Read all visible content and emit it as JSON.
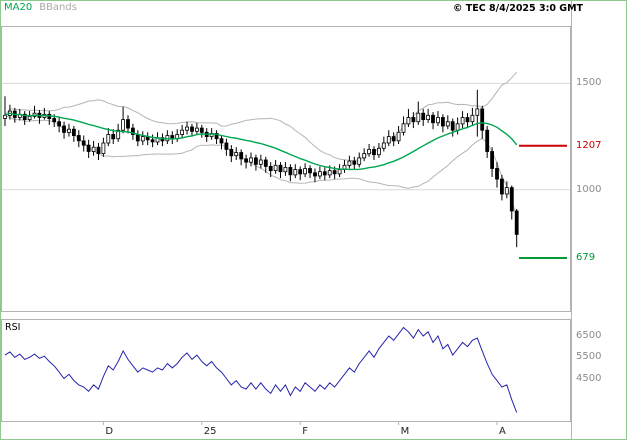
{
  "header": {
    "ma20_label": "MA20",
    "bbands_label": "BBands",
    "copyright": "© TEC 8/4/2025 3:0 GMT"
  },
  "colors": {
    "ma20": "#00a651",
    "bbands": "#b5b5b5",
    "grid": "#d9d9d9",
    "panel_border": "#b3b3b3",
    "frame": "#8fc98f",
    "candle": "#000000",
    "rsi_line": "#2424aa",
    "level_up": "#cc0000",
    "level_down": "#009933",
    "axis_text": "#8c8c8c",
    "month_text": "#222222"
  },
  "chart_data": {
    "type": "candlestick",
    "title": "",
    "price_panel": {
      "ylim": [
        430,
        1770
      ],
      "gridlines": [
        1500,
        1000
      ],
      "axis_labels": [
        "1500",
        "1000"
      ],
      "levels": [
        {
          "value": 1207,
          "label": "1207",
          "color_key": "level_up"
        },
        {
          "value": 679,
          "label": "679",
          "color_key": "level_down"
        }
      ],
      "overlays": [
        "MA20",
        "BBands(20,2)"
      ]
    },
    "ohlc": [
      [
        1335,
        1440,
        1300,
        1350
      ],
      [
        1350,
        1400,
        1330,
        1370
      ],
      [
        1370,
        1385,
        1315,
        1340
      ],
      [
        1340,
        1380,
        1325,
        1355
      ],
      [
        1355,
        1370,
        1305,
        1330
      ],
      [
        1330,
        1370,
        1320,
        1345
      ],
      [
        1345,
        1395,
        1335,
        1360
      ],
      [
        1360,
        1375,
        1310,
        1340
      ],
      [
        1340,
        1385,
        1330,
        1355
      ],
      [
        1355,
        1370,
        1305,
        1335
      ],
      [
        1335,
        1355,
        1295,
        1320
      ],
      [
        1320,
        1340,
        1270,
        1300
      ],
      [
        1300,
        1320,
        1240,
        1270
      ],
      [
        1270,
        1310,
        1250,
        1285
      ],
      [
        1285,
        1300,
        1225,
        1255
      ],
      [
        1255,
        1280,
        1200,
        1230
      ],
      [
        1230,
        1255,
        1180,
        1210
      ],
      [
        1210,
        1235,
        1150,
        1180
      ],
      [
        1180,
        1230,
        1160,
        1200
      ],
      [
        1200,
        1220,
        1140,
        1170
      ],
      [
        1170,
        1245,
        1155,
        1220
      ],
      [
        1220,
        1290,
        1205,
        1260
      ],
      [
        1260,
        1285,
        1215,
        1240
      ],
      [
        1240,
        1310,
        1225,
        1280
      ],
      [
        1280,
        1390,
        1265,
        1330
      ],
      [
        1330,
        1350,
        1265,
        1290
      ],
      [
        1290,
        1310,
        1235,
        1260
      ],
      [
        1260,
        1280,
        1205,
        1230
      ],
      [
        1230,
        1275,
        1210,
        1250
      ],
      [
        1250,
        1270,
        1210,
        1235
      ],
      [
        1235,
        1260,
        1200,
        1225
      ],
      [
        1225,
        1270,
        1210,
        1245
      ],
      [
        1245,
        1265,
        1205,
        1230
      ],
      [
        1230,
        1280,
        1215,
        1255
      ],
      [
        1255,
        1275,
        1215,
        1240
      ],
      [
        1240,
        1285,
        1225,
        1260
      ],
      [
        1260,
        1305,
        1245,
        1280
      ],
      [
        1280,
        1320,
        1260,
        1295
      ],
      [
        1295,
        1310,
        1250,
        1275
      ],
      [
        1275,
        1315,
        1260,
        1290
      ],
      [
        1290,
        1305,
        1245,
        1270
      ],
      [
        1270,
        1290,
        1225,
        1250
      ],
      [
        1250,
        1290,
        1235,
        1265
      ],
      [
        1265,
        1280,
        1215,
        1240
      ],
      [
        1240,
        1255,
        1190,
        1220
      ],
      [
        1220,
        1240,
        1160,
        1190
      ],
      [
        1190,
        1210,
        1130,
        1160
      ],
      [
        1160,
        1200,
        1140,
        1175
      ],
      [
        1175,
        1190,
        1115,
        1145
      ],
      [
        1145,
        1165,
        1100,
        1130
      ],
      [
        1130,
        1175,
        1110,
        1150
      ],
      [
        1150,
        1165,
        1090,
        1120
      ],
      [
        1120,
        1165,
        1100,
        1140
      ],
      [
        1140,
        1155,
        1080,
        1110
      ],
      [
        1110,
        1130,
        1060,
        1090
      ],
      [
        1090,
        1140,
        1075,
        1115
      ],
      [
        1115,
        1130,
        1055,
        1085
      ],
      [
        1085,
        1130,
        1065,
        1105
      ],
      [
        1105,
        1120,
        1040,
        1070
      ],
      [
        1070,
        1120,
        1055,
        1095
      ],
      [
        1095,
        1110,
        1045,
        1075
      ],
      [
        1075,
        1125,
        1060,
        1100
      ],
      [
        1100,
        1115,
        1055,
        1080
      ],
      [
        1080,
        1100,
        1035,
        1065
      ],
      [
        1065,
        1110,
        1050,
        1085
      ],
      [
        1085,
        1105,
        1045,
        1070
      ],
      [
        1070,
        1115,
        1055,
        1090
      ],
      [
        1090,
        1110,
        1050,
        1075
      ],
      [
        1075,
        1120,
        1060,
        1095
      ],
      [
        1095,
        1140,
        1080,
        1115
      ],
      [
        1115,
        1160,
        1100,
        1135
      ],
      [
        1135,
        1155,
        1095,
        1120
      ],
      [
        1120,
        1175,
        1105,
        1150
      ],
      [
        1150,
        1195,
        1135,
        1170
      ],
      [
        1170,
        1215,
        1155,
        1190
      ],
      [
        1190,
        1205,
        1140,
        1165
      ],
      [
        1165,
        1220,
        1150,
        1195
      ],
      [
        1195,
        1250,
        1180,
        1220
      ],
      [
        1220,
        1280,
        1205,
        1250
      ],
      [
        1250,
        1270,
        1205,
        1230
      ],
      [
        1230,
        1300,
        1215,
        1270
      ],
      [
        1270,
        1345,
        1255,
        1310
      ],
      [
        1310,
        1380,
        1295,
        1340
      ],
      [
        1340,
        1365,
        1290,
        1320
      ],
      [
        1320,
        1415,
        1305,
        1360
      ],
      [
        1360,
        1380,
        1300,
        1330
      ],
      [
        1330,
        1380,
        1315,
        1350
      ],
      [
        1350,
        1365,
        1285,
        1315
      ],
      [
        1315,
        1370,
        1300,
        1340
      ],
      [
        1340,
        1355,
        1270,
        1300
      ],
      [
        1300,
        1350,
        1285,
        1320
      ],
      [
        1320,
        1335,
        1250,
        1280
      ],
      [
        1280,
        1340,
        1260,
        1310
      ],
      [
        1310,
        1370,
        1290,
        1340
      ],
      [
        1340,
        1360,
        1290,
        1320
      ],
      [
        1320,
        1385,
        1305,
        1350
      ],
      [
        1350,
        1470,
        1250,
        1380
      ],
      [
        1380,
        1395,
        1240,
        1280
      ],
      [
        1280,
        1300,
        1150,
        1180
      ],
      [
        1180,
        1200,
        1060,
        1100
      ],
      [
        1100,
        1130,
        1010,
        1050
      ],
      [
        1050,
        1070,
        950,
        980
      ],
      [
        980,
        1040,
        960,
        1010
      ],
      [
        1010,
        1020,
        860,
        900
      ],
      [
        900,
        910,
        730,
        790
      ]
    ],
    "rsi_panel": {
      "label": "RSI",
      "ylim": [
        2500,
        7300
      ],
      "axis_labels": [
        6500,
        5500,
        4500
      ],
      "values": [
        5600,
        5750,
        5500,
        5650,
        5400,
        5500,
        5650,
        5450,
        5550,
        5300,
        5100,
        4800,
        4500,
        4700,
        4400,
        4200,
        4100,
        3900,
        4200,
        4000,
        4600,
        5100,
        4900,
        5300,
        5800,
        5400,
        5100,
        4800,
        5000,
        4900,
        4800,
        5000,
        4900,
        5200,
        5000,
        5200,
        5500,
        5700,
        5400,
        5600,
        5300,
        5100,
        5300,
        5000,
        4800,
        4500,
        4200,
        4400,
        4100,
        4000,
        4300,
        4000,
        4300,
        4000,
        3800,
        4200,
        3900,
        4200,
        3700,
        4100,
        3900,
        4300,
        4100,
        3900,
        4200,
        4000,
        4300,
        4100,
        4400,
        4700,
        5000,
        4800,
        5200,
        5500,
        5800,
        5500,
        5900,
        6200,
        6500,
        6300,
        6600,
        6900,
        6700,
        6400,
        6800,
        6500,
        6700,
        6200,
        6500,
        5900,
        6100,
        5600,
        5900,
        6200,
        6000,
        6300,
        6400,
        5800,
        5200,
        4700,
        4400,
        4100,
        4200,
        3500,
        2900
      ]
    },
    "x_axis": {
      "ticks": [
        {
          "label": "D",
          "index": 20
        },
        {
          "label": "25",
          "index": 40
        },
        {
          "label": "F",
          "index": 60
        },
        {
          "label": "M",
          "index": 80
        },
        {
          "label": "A",
          "index": 100
        }
      ]
    }
  }
}
